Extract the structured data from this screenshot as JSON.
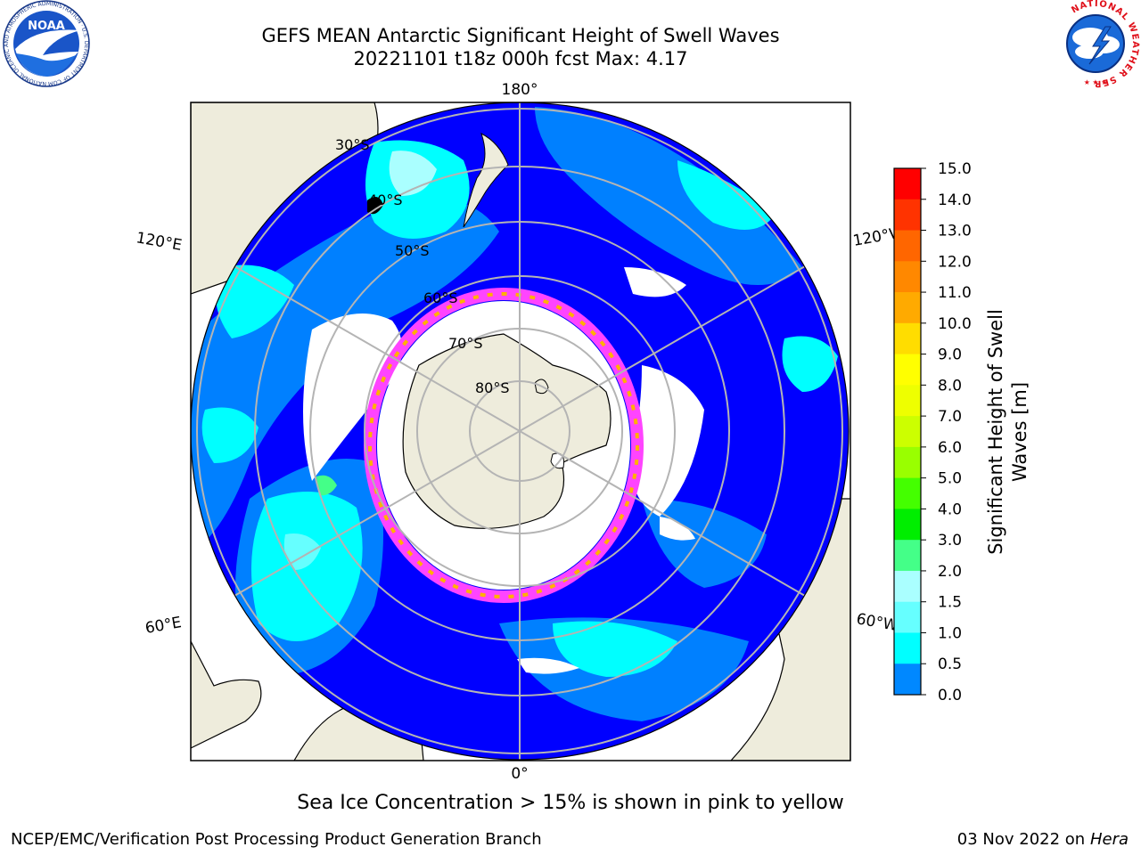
{
  "title": {
    "line1": "GEFS MEAN Antarctic Significant Height of Swell Waves",
    "line2": "20221101 t18z 000h fcst   Max: 4.17"
  },
  "map": {
    "projection": "south-polar-stereographic",
    "longitude_labels": {
      "top": "180°",
      "bottom": "0°",
      "upper_left": "120°E",
      "upper_right": "120°W",
      "lower_left": "60°E",
      "lower_right": "60°W"
    },
    "latitude_labels": [
      "30°S",
      "40°S",
      "50°S",
      "60°S",
      "70°S",
      "80°S"
    ],
    "colors": {
      "land": "#eeecdc",
      "ice_free_open": "#ffffff",
      "ocean_low": "#0000ff",
      "ocean_mid": "#0080ff",
      "ocean_high": "#00ffff",
      "sea_ice_edge": "#ff44ff",
      "sea_ice_yellow": "#ffb000",
      "grid": "#b4b4b4"
    }
  },
  "colorbar": {
    "label": "Significant Height of Swell Waves [m]",
    "label_line1": "Significant Height of Swell",
    "label_line2": "Waves [m]",
    "ticks": [
      "15.0",
      "14.0",
      "13.0",
      "12.0",
      "11.0",
      "10.0",
      "9.0",
      "8.0",
      "7.0",
      "6.0",
      "5.0",
      "4.0",
      "3.0",
      "2.0",
      "1.5",
      "1.0",
      "0.5",
      "0.0"
    ],
    "colors_top_to_bottom": [
      "#ff0000",
      "#ff3300",
      "#ff6600",
      "#ff8800",
      "#ffaa00",
      "#ffdd00",
      "#ffff00",
      "#eeff00",
      "#ccff00",
      "#99ff00",
      "#44ff00",
      "#00ee00",
      "#44ff88",
      "#aaffff",
      "#66ffff",
      "#00ffff",
      "#0088ff",
      "#0000ff"
    ]
  },
  "footer": {
    "caption": "Sea Ice Concentration > 15% is shown in pink to yellow",
    "credit": "NCEP/EMC/Verification Post Processing Product Generation Branch",
    "date": "03 Nov 2022 on",
    "host": "Hera"
  },
  "logos": {
    "noaa": {
      "text": "NOAA",
      "ring_text": "NATIONAL OCEANIC AND ATMOSPHERIC ADMINISTRATION · U.S. DEPARTMENT OF COMMERCE"
    },
    "nws": {
      "ring_text": "NATIONAL WEATHER SERVICE"
    }
  }
}
